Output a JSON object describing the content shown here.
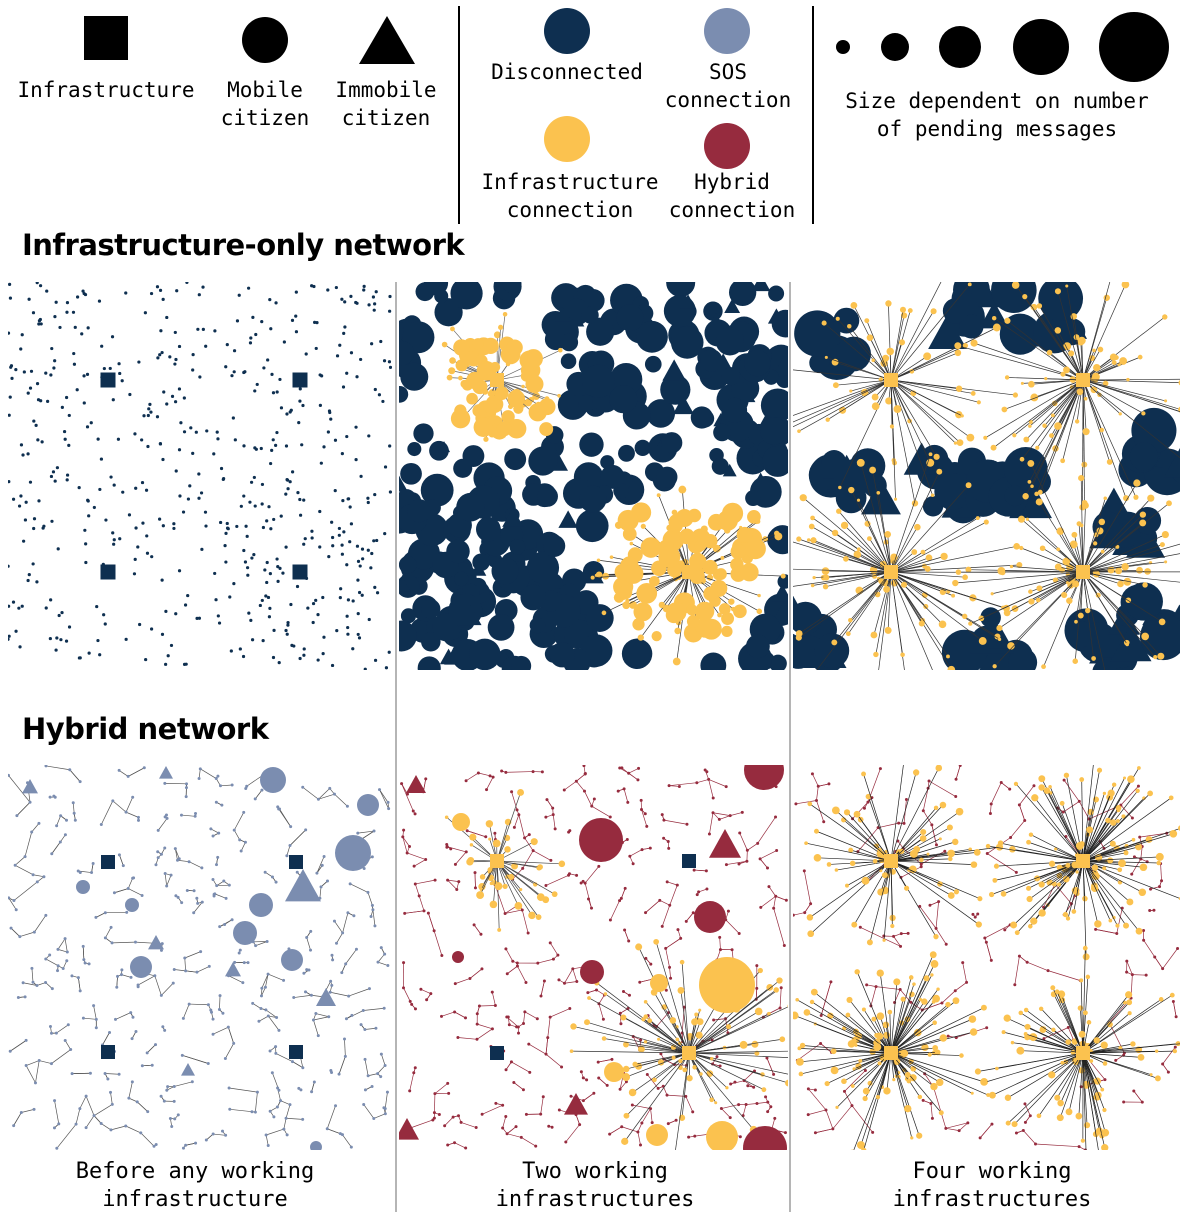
{
  "legend": {
    "shapes": [
      {
        "shape": "square",
        "icon": "square-icon",
        "label": "Infrastructure"
      },
      {
        "shape": "circle",
        "icon": "circle-icon",
        "label": "Mobile\ncitizen"
      },
      {
        "shape": "triangle",
        "icon": "triangle-icon",
        "label": "Immobile\ncitizen"
      }
    ],
    "statuses": [
      {
        "key": "disconnected",
        "color": "#0e2f50",
        "label": "Disconnected"
      },
      {
        "key": "sos",
        "color": "#7b8db0",
        "label": "SOS\nconnection"
      },
      {
        "key": "infrastructure",
        "color": "#fbc24f",
        "label": "Infrastructure\nconnection"
      },
      {
        "key": "hybrid",
        "color": "#962b3e",
        "label": "Hybrid\nconnection"
      }
    ],
    "size_note": "Size dependent on number\nof pending messages"
  },
  "rows": [
    {
      "key": "infra",
      "title": "Infrastructure-only network"
    },
    {
      "key": "hybrid",
      "title": "Hybrid network"
    }
  ],
  "columns": [
    {
      "caption": "Before any working\ninfrastructure",
      "working_infrastructures": 0
    },
    {
      "caption": "Two working\ninfrastructures",
      "working_infrastructures": 2
    },
    {
      "caption": "Four working\ninfrastructures",
      "working_infrastructures": 4
    }
  ]
}
